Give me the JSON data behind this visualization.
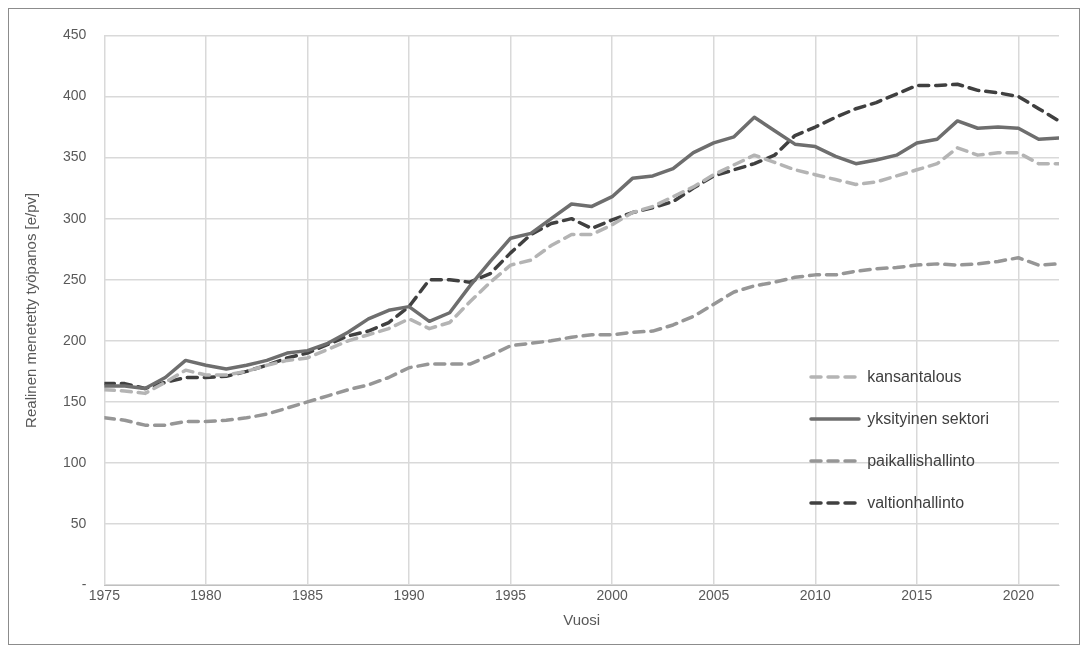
{
  "chart_data": {
    "type": "line",
    "xlabel": "Vuosi",
    "ylabel": "Realinen menetetty työpanos [e/pv]",
    "x": [
      1975,
      1976,
      1977,
      1978,
      1979,
      1980,
      1981,
      1982,
      1983,
      1984,
      1985,
      1986,
      1987,
      1988,
      1989,
      1990,
      1991,
      1992,
      1993,
      1994,
      1995,
      1996,
      1997,
      1998,
      1999,
      2000,
      2001,
      2002,
      2003,
      2004,
      2005,
      2006,
      2007,
      2008,
      2009,
      2010,
      2011,
      2012,
      2013,
      2014,
      2015,
      2016,
      2017,
      2018,
      2019,
      2020,
      2021,
      2022
    ],
    "series": [
      {
        "name": "kansantalous",
        "color": "#b4b4b4",
        "line_style": "dashed",
        "values": [
          160,
          159,
          157,
          166,
          176,
          172,
          172,
          175,
          180,
          184,
          186,
          193,
          200,
          205,
          210,
          218,
          210,
          215,
          232,
          248,
          262,
          266,
          278,
          287,
          287,
          295,
          305,
          310,
          318,
          326,
          336,
          344,
          352,
          346,
          340,
          336,
          332,
          328,
          330,
          335,
          340,
          345,
          358,
          352,
          354,
          354,
          345,
          345
        ]
      },
      {
        "name": "yksityinen sektori",
        "color": "#6e6e6e",
        "line_style": "solid",
        "values": [
          163,
          163,
          161,
          170,
          184,
          180,
          177,
          180,
          184,
          190,
          192,
          198,
          207,
          218,
          225,
          228,
          216,
          223,
          245,
          265,
          284,
          288,
          300,
          312,
          310,
          318,
          333,
          335,
          341,
          354,
          362,
          367,
          383,
          372,
          361,
          359,
          351,
          345,
          348,
          352,
          362,
          365,
          380,
          374,
          375,
          374,
          365,
          366
        ]
      },
      {
        "name": "paikallishallinto",
        "color": "#969696",
        "line_style": "dashed",
        "values": [
          137,
          135,
          131,
          131,
          134,
          134,
          135,
          137,
          140,
          145,
          150,
          155,
          160,
          164,
          170,
          178,
          181,
          181,
          181,
          188,
          196,
          198,
          200,
          203,
          205,
          205,
          207,
          208,
          213,
          220,
          230,
          240,
          245,
          248,
          252,
          254,
          254,
          257,
          259,
          260,
          262,
          263,
          262,
          263,
          265,
          268,
          262,
          263
        ]
      },
      {
        "name": "valtionhallinto",
        "color": "#404040",
        "line_style": "dashed",
        "values": [
          165,
          165,
          161,
          166,
          170,
          170,
          171,
          175,
          180,
          186,
          190,
          197,
          204,
          208,
          215,
          228,
          250,
          250,
          248,
          255,
          272,
          287,
          296,
          300,
          292,
          299,
          305,
          309,
          314,
          325,
          335,
          340,
          345,
          352,
          368,
          375,
          383,
          390,
          395,
          402,
          409,
          409,
          410,
          405,
          403,
          400,
          390,
          380
        ]
      }
    ],
    "xlim": [
      1975,
      2022
    ],
    "xticks": [
      1975,
      1980,
      1985,
      1990,
      1995,
      2000,
      2005,
      2010,
      2015,
      2020
    ],
    "ylim": [
      0,
      450
    ],
    "yticks": [
      {
        "value": 0,
        "label": "-"
      },
      50,
      100,
      150,
      200,
      250,
      300,
      350,
      400,
      450
    ],
    "grid": true,
    "legend": "bottom right",
    "marker": "none"
  }
}
